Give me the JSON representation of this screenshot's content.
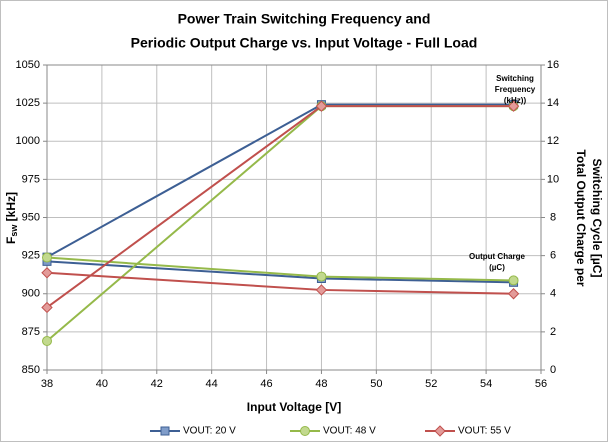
{
  "chart_data": {
    "type": "line",
    "title": [
      "Power Train Switching Frequency and",
      "Periodic Output Charge vs. Input Voltage - Full Load"
    ],
    "x_label": "Input Voltage [V]",
    "y_label": {
      "main": "F",
      "sub": "sw",
      "unit": " [kHz]"
    },
    "y2_label": [
      "Total Output Charge per",
      "Switching Cycle [µC]"
    ],
    "x": [
      38,
      48,
      55
    ],
    "xlim": [
      38,
      56
    ],
    "xticks": [
      38,
      40,
      42,
      44,
      46,
      48,
      50,
      52,
      54,
      56
    ],
    "ylim": [
      850,
      1050
    ],
    "yticks": [
      850,
      875,
      900,
      925,
      950,
      975,
      1000,
      1025,
      1050
    ],
    "y2lim": [
      0,
      16
    ],
    "y2ticks": [
      0,
      2,
      4,
      6,
      8,
      10,
      12,
      14,
      16
    ],
    "grid": true,
    "legend": "bottom",
    "annotations": [
      {
        "lines": [
          "Switching",
          "Frequency",
          "(kHz))"
        ]
      },
      {
        "lines": [
          "Output Charge",
          "(µC)"
        ]
      }
    ],
    "series": [
      {
        "name": "VOUT: 20 V",
        "color": "#3d5f94",
        "fill": "#7f9cc9",
        "marker": "square",
        "frequency": [
          924,
          1024,
          1024
        ],
        "charge": [
          5.7,
          4.8,
          4.6
        ]
      },
      {
        "name": "VOUT: 48 V",
        "color": "#95b94a",
        "fill": "#c2d98e",
        "marker": "circle",
        "frequency": [
          869,
          1023,
          1023
        ],
        "charge": [
          5.9,
          4.9,
          4.7
        ]
      },
      {
        "name": "VOUT: 55 V",
        "color": "#c0504d",
        "fill": "#e39b99",
        "marker": "diamond",
        "frequency": [
          891,
          1023,
          1023
        ],
        "charge": [
          5.1,
          4.2,
          4.0
        ]
      }
    ]
  }
}
